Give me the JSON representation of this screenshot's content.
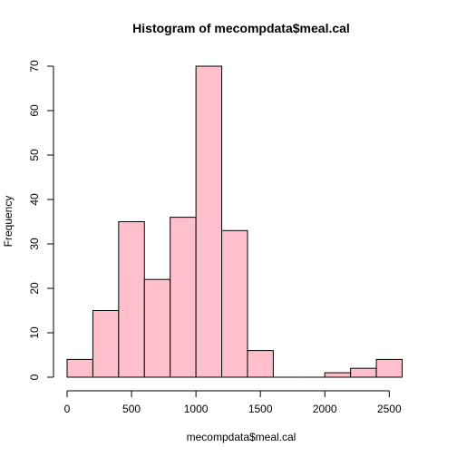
{
  "chart_data": {
    "type": "bar",
    "title": "Histogram of mecompdata$meal.cal",
    "xlabel": "mecompdata$meal.cal",
    "ylabel": "Frequency",
    "bin_edges": [
      0,
      200,
      400,
      600,
      800,
      1000,
      1200,
      1400,
      1600,
      1800,
      2000,
      2200,
      2400,
      2600
    ],
    "values": [
      4,
      15,
      35,
      22,
      36,
      70,
      33,
      6,
      0,
      0,
      1,
      2,
      4
    ],
    "xlim": [
      0,
      2600
    ],
    "ylim": [
      0,
      70
    ],
    "x_ticks": [
      0,
      500,
      1000,
      1500,
      2000,
      2500
    ],
    "y_ticks": [
      0,
      10,
      20,
      30,
      40,
      50,
      60,
      70
    ],
    "bar_color": "#ffc0cb",
    "grid": false,
    "legend": "none"
  }
}
